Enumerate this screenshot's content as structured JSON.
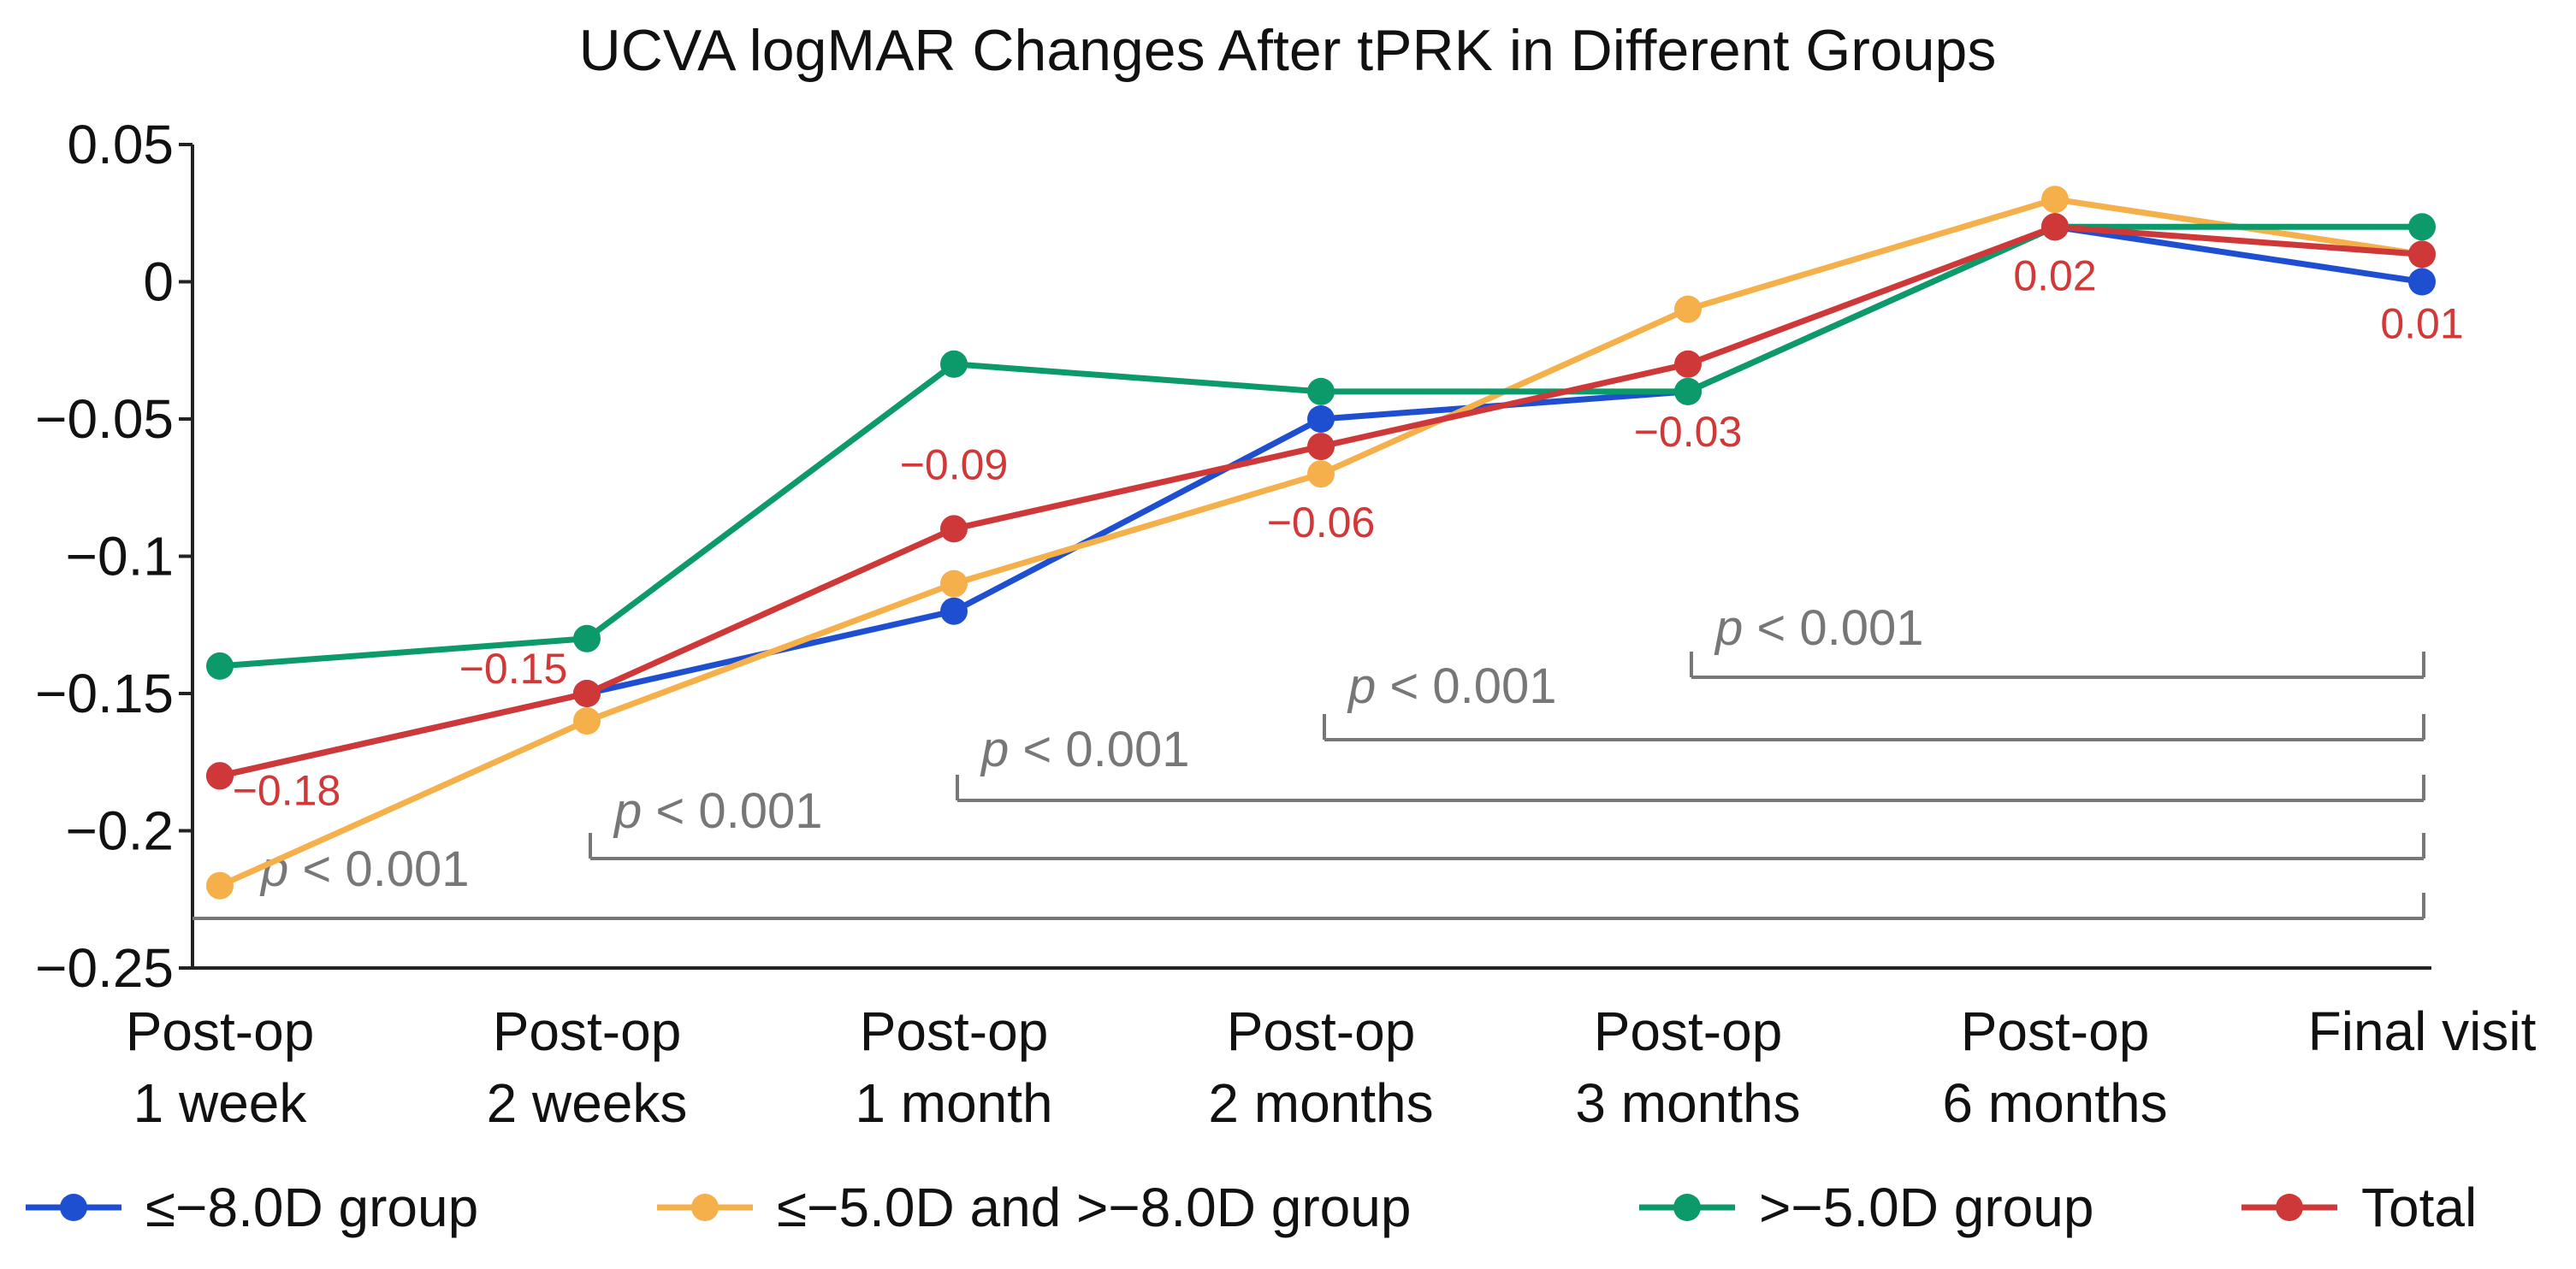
{
  "chart_data": {
    "type": "line",
    "title": "UCVA logMAR Changes After tPRK in Different Groups",
    "xlabel": "",
    "ylabel": "",
    "categories": [
      [
        "Post-op",
        "1 week"
      ],
      [
        "Post-op",
        "2 weeks"
      ],
      [
        "Post-op",
        "1 month"
      ],
      [
        "Post-op",
        "2 months"
      ],
      [
        "Post-op",
        "3 months"
      ],
      [
        "Post-op",
        "6 months"
      ],
      [
        "Final visit"
      ]
    ],
    "ylim": [
      -0.25,
      0.05
    ],
    "yticks": [
      {
        "value": 0.05,
        "label": "0.05"
      },
      {
        "value": 0,
        "label": "0"
      },
      {
        "value": -0.05,
        "label": "−0.05"
      },
      {
        "value": -0.1,
        "label": "−0.1"
      },
      {
        "value": -0.15,
        "label": "−0.15"
      },
      {
        "value": -0.2,
        "label": "−0.2"
      },
      {
        "value": -0.25,
        "label": "−0.25"
      }
    ],
    "grid": false,
    "legend_position": "bottom",
    "series": [
      {
        "name": "≤−8.0D group",
        "color": "#1f4fd1",
        "values": [
          -0.18,
          -0.15,
          -0.12,
          -0.05,
          -0.04,
          0.02,
          0.0
        ]
      },
      {
        "name": "≤−5.0D and >−8.0D group",
        "color": "#f5b04b",
        "values": [
          -0.22,
          -0.16,
          -0.11,
          -0.07,
          -0.01,
          0.03,
          0.01
        ]
      },
      {
        "name": ">−5.0D group",
        "color": "#0d9a6a",
        "values": [
          -0.14,
          -0.13,
          -0.03,
          -0.04,
          -0.04,
          0.02,
          0.02
        ]
      },
      {
        "name": "Total",
        "color": "#cf3838",
        "values": [
          -0.18,
          -0.15,
          -0.09,
          -0.06,
          -0.03,
          0.02,
          0.01
        ]
      }
    ],
    "data_labels": [
      {
        "index": 0,
        "text": "−0.18"
      },
      {
        "index": 1,
        "text": "−0.15"
      },
      {
        "index": 2,
        "text": "−0.09"
      },
      {
        "index": 3,
        "text": "−0.06"
      },
      {
        "index": 4,
        "text": "−0.03"
      },
      {
        "index": 5,
        "text": "0.02"
      },
      {
        "index": 6,
        "text": "0.01"
      }
    ],
    "annotations": [
      {
        "text_p": "p",
        "text_rest": " < 0.001",
        "from_index": 4,
        "to_index": 6
      },
      {
        "text_p": "p",
        "text_rest": " < 0.001",
        "from_index": 3,
        "to_index": 6
      },
      {
        "text_p": "p",
        "text_rest": " < 0.001",
        "from_index": 2,
        "to_index": 6
      },
      {
        "text_p": "p",
        "text_rest": " < 0.001",
        "from_index": 1,
        "to_index": 6
      },
      {
        "text_p": "p",
        "text_rest": " < 0.001",
        "from_index": 0,
        "to_index": 6
      }
    ]
  }
}
